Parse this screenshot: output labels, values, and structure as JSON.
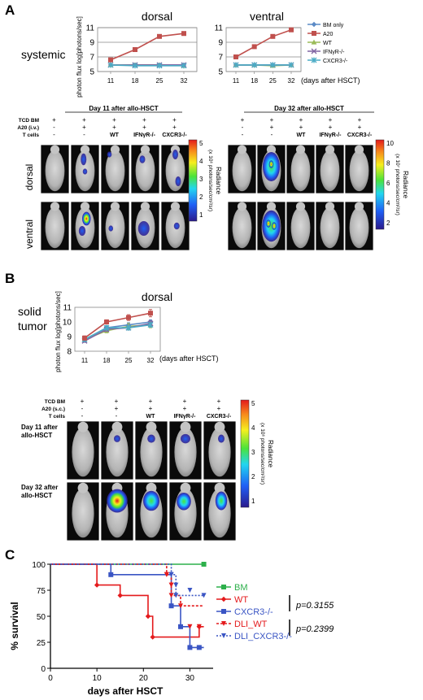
{
  "panel_labels": {
    "a": "A",
    "b": "B",
    "c": "C"
  },
  "colors": {
    "bm_only": "#5b8ac6",
    "a20": "#c0504d",
    "wt": "#9bbb59",
    "ifngr": "#8064a2",
    "cxcr3": "#4bacc6",
    "surv_bm": "#2db04b",
    "surv_wt": "#e41a1c",
    "surv_cxcr3": "#3a55c4",
    "surv_dli_wt": "#e41a1c",
    "surv_dli_cxcr3": "#3a55c4"
  },
  "panelA": {
    "row_label": "systemic",
    "x_unit": "(days after HSCT)",
    "legend": [
      "BM only",
      "A20",
      "WT",
      "IFNγR-/-",
      "CXCR3-/-"
    ],
    "images": {
      "day11_title": "Day 11 after allo-HSCT",
      "day32_title": "Day 32 after allo-HSCT",
      "header_rows": [
        "TCD BM",
        "A20 (i.v.)",
        "T cells"
      ],
      "plus": "+",
      "minus": "-",
      "col_labels": [
        "WT",
        "IFNγR-/-",
        "CXCR3-/-"
      ],
      "row_labels": [
        "dorsal",
        "ventral"
      ],
      "day11_scale": {
        "ticks": [
          "5",
          "4",
          "3",
          "2",
          "1"
        ],
        "label": "Radiance",
        "unit": "(x 10⁶ photons/sec/cm²/sr)"
      },
      "day32_scale": {
        "ticks": [
          "10",
          "8",
          "6",
          "4",
          "2"
        ],
        "label": "Radiance",
        "unit": "(x 10⁷ photons/sec/cm²/sr)"
      }
    }
  },
  "panelB": {
    "row_label_1": "solid",
    "row_label_2": "tumor",
    "x_unit": "(days after HSCT)",
    "images": {
      "header_rows": [
        "TCD BM",
        "A20 (s.c.)",
        "T cells"
      ],
      "col_labels": [
        "WT",
        "IFNγR-/-",
        "CXCR3-/-"
      ],
      "row_labels_1": [
        "Day 11 after",
        "allo-HSCT"
      ],
      "row_labels_2": [
        "Day 32 after",
        "allo-HSCT"
      ],
      "scale": {
        "ticks": [
          "5",
          "4",
          "3",
          "2",
          "1"
        ],
        "label": "Radiance",
        "unit": "(x 10⁶ photons/sec/cm²/sr)"
      }
    }
  },
  "panelC": {
    "legend": [
      "BM",
      "WT",
      "CXCR3-/-",
      "DLI_WT",
      "DLI_CXCR3-/-"
    ],
    "p1": "p=0.3155",
    "p2": "p=0.2399"
  },
  "chart_data": [
    {
      "type": "line",
      "title": "dorsal",
      "ylabel": "photon flux log[photons/sec]",
      "xlabel": "(days after HSCT)",
      "x": [
        11,
        18,
        25,
        32
      ],
      "ylim": [
        5,
        11
      ],
      "yticks": [
        5,
        7,
        9,
        11
      ],
      "series": [
        {
          "name": "BM only",
          "values": [
            5.9,
            5.9,
            5.9,
            5.9
          ]
        },
        {
          "name": "A20",
          "values": [
            6.6,
            8.0,
            9.8,
            10.2
          ]
        },
        {
          "name": "WT",
          "values": [
            5.9,
            5.9,
            5.9,
            5.8
          ]
        },
        {
          "name": "IFNγR-/-",
          "values": [
            5.9,
            5.9,
            5.9,
            5.9
          ]
        },
        {
          "name": "CXCR3-/-",
          "values": [
            5.9,
            5.8,
            5.8,
            5.8
          ]
        }
      ]
    },
    {
      "type": "line",
      "title": "ventral",
      "ylabel": "",
      "xlabel": "(days after HSCT)",
      "x": [
        11,
        18,
        25,
        32
      ],
      "ylim": [
        5,
        11
      ],
      "yticks": [
        5,
        7,
        9,
        11
      ],
      "series": [
        {
          "name": "BM only",
          "values": [
            5.9,
            5.9,
            5.9,
            5.9
          ]
        },
        {
          "name": "A20",
          "values": [
            7.0,
            8.4,
            9.8,
            10.7
          ]
        },
        {
          "name": "WT",
          "values": [
            5.9,
            5.9,
            5.8,
            5.9
          ]
        },
        {
          "name": "IFNγR-/-",
          "values": [
            5.9,
            5.9,
            5.9,
            5.9
          ]
        },
        {
          "name": "CXCR3-/-",
          "values": [
            5.9,
            5.9,
            5.9,
            5.9
          ]
        }
      ]
    },
    {
      "type": "line",
      "title": "dorsal",
      "ylabel": "photon flux log[photons/sec]",
      "xlabel": "(days after HSCT)",
      "x": [
        11,
        18,
        25,
        32
      ],
      "ylim": [
        8,
        11
      ],
      "yticks": [
        8,
        9,
        10,
        11
      ],
      "series": [
        {
          "name": "BM only",
          "values": [
            8.8,
            9.6,
            9.8,
            10.0
          ],
          "err": [
            0.15,
            0.15,
            0.15,
            0.15
          ]
        },
        {
          "name": "A20",
          "values": [
            8.9,
            10.0,
            10.3,
            10.6
          ],
          "err": [
            0.15,
            0.15,
            0.2,
            0.25
          ]
        },
        {
          "name": "WT",
          "values": [
            8.8,
            9.4,
            9.7,
            9.8
          ],
          "err": [
            0.15,
            0.15,
            0.2,
            0.2
          ]
        },
        {
          "name": "IFNγR-/-",
          "values": [
            8.7,
            9.5,
            9.6,
            9.9
          ],
          "err": [
            0.1,
            0.15,
            0.15,
            0.2
          ]
        },
        {
          "name": "CXCR3-/-",
          "values": [
            8.8,
            9.6,
            9.6,
            9.8
          ],
          "err": [
            0.1,
            0.15,
            0.15,
            0.15
          ]
        }
      ]
    },
    {
      "type": "line",
      "title": "",
      "ylabel": "% survival",
      "xlabel": "days after HSCT",
      "xlim": [
        0,
        35
      ],
      "ylim": [
        0,
        100
      ],
      "xticks": [
        0,
        10,
        20,
        30
      ],
      "yticks": [
        0,
        25,
        50,
        75,
        100
      ],
      "series": [
        {
          "name": "BM",
          "x": [
            0,
            33
          ],
          "values": [
            100,
            100
          ],
          "censor_x": [
            33
          ],
          "censor_y": [
            100
          ]
        },
        {
          "name": "WT",
          "x": [
            0,
            10,
            10,
            15,
            15,
            21,
            21,
            22,
            22,
            32,
            32,
            33
          ],
          "values": [
            100,
            100,
            80,
            80,
            70,
            70,
            50,
            50,
            30,
            30,
            40,
            40
          ],
          "censor_x": [
            32
          ],
          "censor_y": [
            40
          ]
        },
        {
          "name": "CXCR3-/-",
          "x": [
            0,
            13,
            13,
            26,
            26,
            28,
            28,
            30,
            30,
            33
          ],
          "values": [
            100,
            100,
            90,
            90,
            60,
            60,
            40,
            40,
            20,
            20
          ],
          "censor_x": [
            32
          ],
          "censor_y": [
            20
          ]
        },
        {
          "name": "DLI_WT",
          "x": [
            0,
            25,
            25,
            26,
            26,
            28,
            28,
            33
          ],
          "values": [
            100,
            100,
            90,
            90,
            70,
            70,
            60,
            60
          ],
          "censor_x": [
            25,
            26,
            30,
            32
          ],
          "censor_y": [
            90,
            80,
            40,
            40
          ]
        },
        {
          "name": "DLI_CXCR3-/-",
          "x": [
            0,
            26,
            26,
            27,
            27,
            33
          ],
          "values": [
            100,
            100,
            90,
            90,
            70,
            70
          ],
          "censor_x": [
            26,
            27,
            30,
            33
          ],
          "censor_y": [
            90,
            80,
            75,
            70
          ]
        }
      ]
    }
  ]
}
